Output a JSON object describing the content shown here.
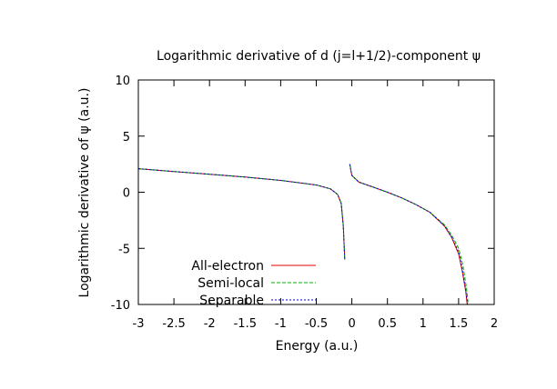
{
  "chart_data": {
    "type": "line",
    "title": "Logarithmic derivative of d (j=l+1/2)-component ψ",
    "xlabel": "Energy (a.u.)",
    "ylabel": "Logarithmic derivative of ψ (a.u.)",
    "xlim": [
      -3,
      2
    ],
    "ylim": [
      -10,
      10
    ],
    "xticks": [
      -3,
      -2.5,
      -2,
      -1.5,
      -1,
      -0.5,
      0,
      0.5,
      1,
      1.5,
      2
    ],
    "xtick_labels": [
      "-3",
      "-2.5",
      "-2",
      "-1.5",
      "-1",
      "-0.5",
      "0",
      "0.5",
      "1",
      "1.5",
      "2"
    ],
    "yticks": [
      -10,
      -5,
      0,
      5,
      10
    ],
    "ytick_labels": [
      "-10",
      "-5",
      "0",
      "5",
      "10"
    ],
    "grid": false,
    "legend_position": "bottom-left",
    "series": [
      {
        "name": "All-electron",
        "color": "#e00000",
        "dash": "solid",
        "segments": [
          [
            [
              -3,
              2.1
            ],
            [
              -2.5,
              1.85
            ],
            [
              -2,
              1.6
            ],
            [
              -1.5,
              1.35
            ],
            [
              -1,
              1.05
            ],
            [
              -0.5,
              0.65
            ],
            [
              -0.3,
              0.3
            ],
            [
              -0.2,
              -0.2
            ],
            [
              -0.15,
              -1.0
            ],
            [
              -0.12,
              -3.0
            ],
            [
              -0.1,
              -6.0
            ]
          ],
          [
            [
              -0.03,
              2.5
            ],
            [
              0,
              1.5
            ],
            [
              0.1,
              0.9
            ],
            [
              0.3,
              0.45
            ],
            [
              0.5,
              0.0
            ],
            [
              0.7,
              -0.5
            ],
            [
              0.9,
              -1.1
            ],
            [
              1.1,
              -1.8
            ],
            [
              1.3,
              -3.0
            ],
            [
              1.4,
              -4.0
            ],
            [
              1.5,
              -5.5
            ],
            [
              1.55,
              -7.0
            ],
            [
              1.6,
              -8.8
            ],
            [
              1.62,
              -10
            ]
          ]
        ]
      },
      {
        "name": "Semi-local",
        "color": "#00b000",
        "dash": "dashed",
        "segments": [
          [
            [
              -3,
              2.1
            ],
            [
              -2.5,
              1.85
            ],
            [
              -2,
              1.6
            ],
            [
              -1.5,
              1.35
            ],
            [
              -1,
              1.05
            ],
            [
              -0.5,
              0.65
            ],
            [
              -0.3,
              0.3
            ],
            [
              -0.2,
              -0.2
            ],
            [
              -0.15,
              -1.0
            ],
            [
              -0.12,
              -3.0
            ],
            [
              -0.1,
              -6.0
            ]
          ],
          [
            [
              -0.03,
              2.5
            ],
            [
              0,
              1.5
            ],
            [
              0.1,
              0.9
            ],
            [
              0.3,
              0.45
            ],
            [
              0.5,
              0.0
            ],
            [
              0.7,
              -0.5
            ],
            [
              0.9,
              -1.1
            ],
            [
              1.1,
              -1.8
            ],
            [
              1.3,
              -2.9
            ],
            [
              1.4,
              -3.8
            ],
            [
              1.5,
              -5.0
            ],
            [
              1.56,
              -6.5
            ],
            [
              1.61,
              -8.5
            ],
            [
              1.635,
              -10
            ]
          ]
        ]
      },
      {
        "name": "Separable",
        "color": "#0000d0",
        "dash": "dotted",
        "segments": [
          [
            [
              -3,
              2.1
            ],
            [
              -2.5,
              1.85
            ],
            [
              -2,
              1.6
            ],
            [
              -1.5,
              1.35
            ],
            [
              -1,
              1.05
            ],
            [
              -0.5,
              0.65
            ],
            [
              -0.3,
              0.3
            ],
            [
              -0.2,
              -0.2
            ],
            [
              -0.15,
              -1.0
            ],
            [
              -0.12,
              -3.0
            ],
            [
              -0.1,
              -6.0
            ]
          ],
          [
            [
              -0.03,
              2.5
            ],
            [
              0,
              1.5
            ],
            [
              0.1,
              0.9
            ],
            [
              0.3,
              0.45
            ],
            [
              0.5,
              0.0
            ],
            [
              0.7,
              -0.5
            ],
            [
              0.9,
              -1.1
            ],
            [
              1.1,
              -1.8
            ],
            [
              1.3,
              -3.0
            ],
            [
              1.4,
              -4.0
            ],
            [
              1.5,
              -5.3
            ],
            [
              1.55,
              -6.8
            ],
            [
              1.6,
              -8.7
            ],
            [
              1.625,
              -10
            ]
          ]
        ]
      }
    ]
  }
}
